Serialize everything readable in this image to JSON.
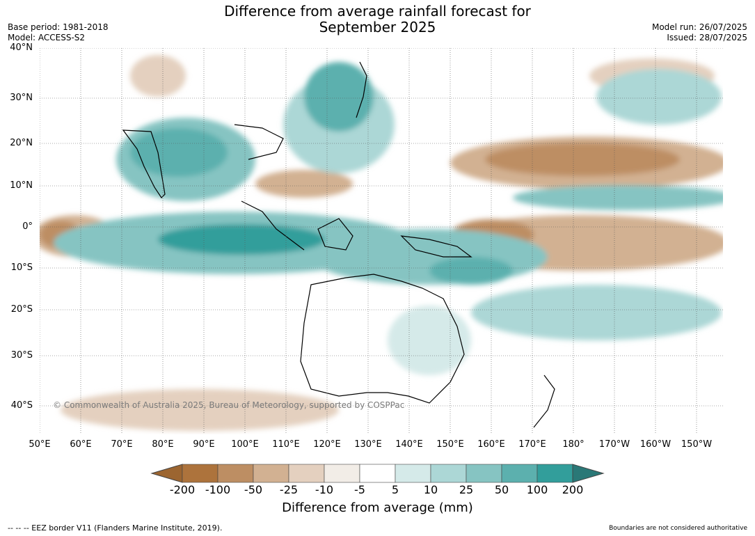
{
  "title_line1": "Difference from average rainfall forecast for",
  "title_line2": "September 2025",
  "meta_left": [
    "Base period: 1981-2018",
    "Model: ACCESS-S2"
  ],
  "meta_right": [
    "Model run: 26/07/2025",
    "Issued: 28/07/2025"
  ],
  "lat_labels": [
    "40°N",
    "30°N",
    "20°N",
    "10°N",
    "0°",
    "10°S",
    "20°S",
    "30°S",
    "40°S"
  ],
  "lon_labels": [
    "50°E",
    "60°E",
    "70°E",
    "80°E",
    "90°E",
    "100°E",
    "110°E",
    "120°E",
    "130°E",
    "140°E",
    "150°E",
    "160°E",
    "170°E",
    "180°",
    "170°W",
    "160°W",
    "150°W"
  ],
  "copyright": "© Commonwealth of Australia 2025, Bureau of Meteorology, supported by COSPPac",
  "colorbar": {
    "labels": [
      "-200",
      "-100",
      "-50",
      "-25",
      "-10",
      "-5",
      "5",
      "10",
      "25",
      "50",
      "100",
      "200"
    ],
    "colors": [
      "#9c6530",
      "#ad733c",
      "#bd8e63",
      "#d2b192",
      "#e4d0bf",
      "#f2ede7",
      "#ffffff",
      "#d5eae9",
      "#acd7d6",
      "#86c4c2",
      "#5cb0ae",
      "#329e9b",
      "#2a7877"
    ],
    "title": "Difference from average (mm)"
  },
  "footer_left": "--  --  -- EEZ border V11 (Flanders Marine Institute, 2019).",
  "footer_right": "Boundaries are not considered authoritative"
}
